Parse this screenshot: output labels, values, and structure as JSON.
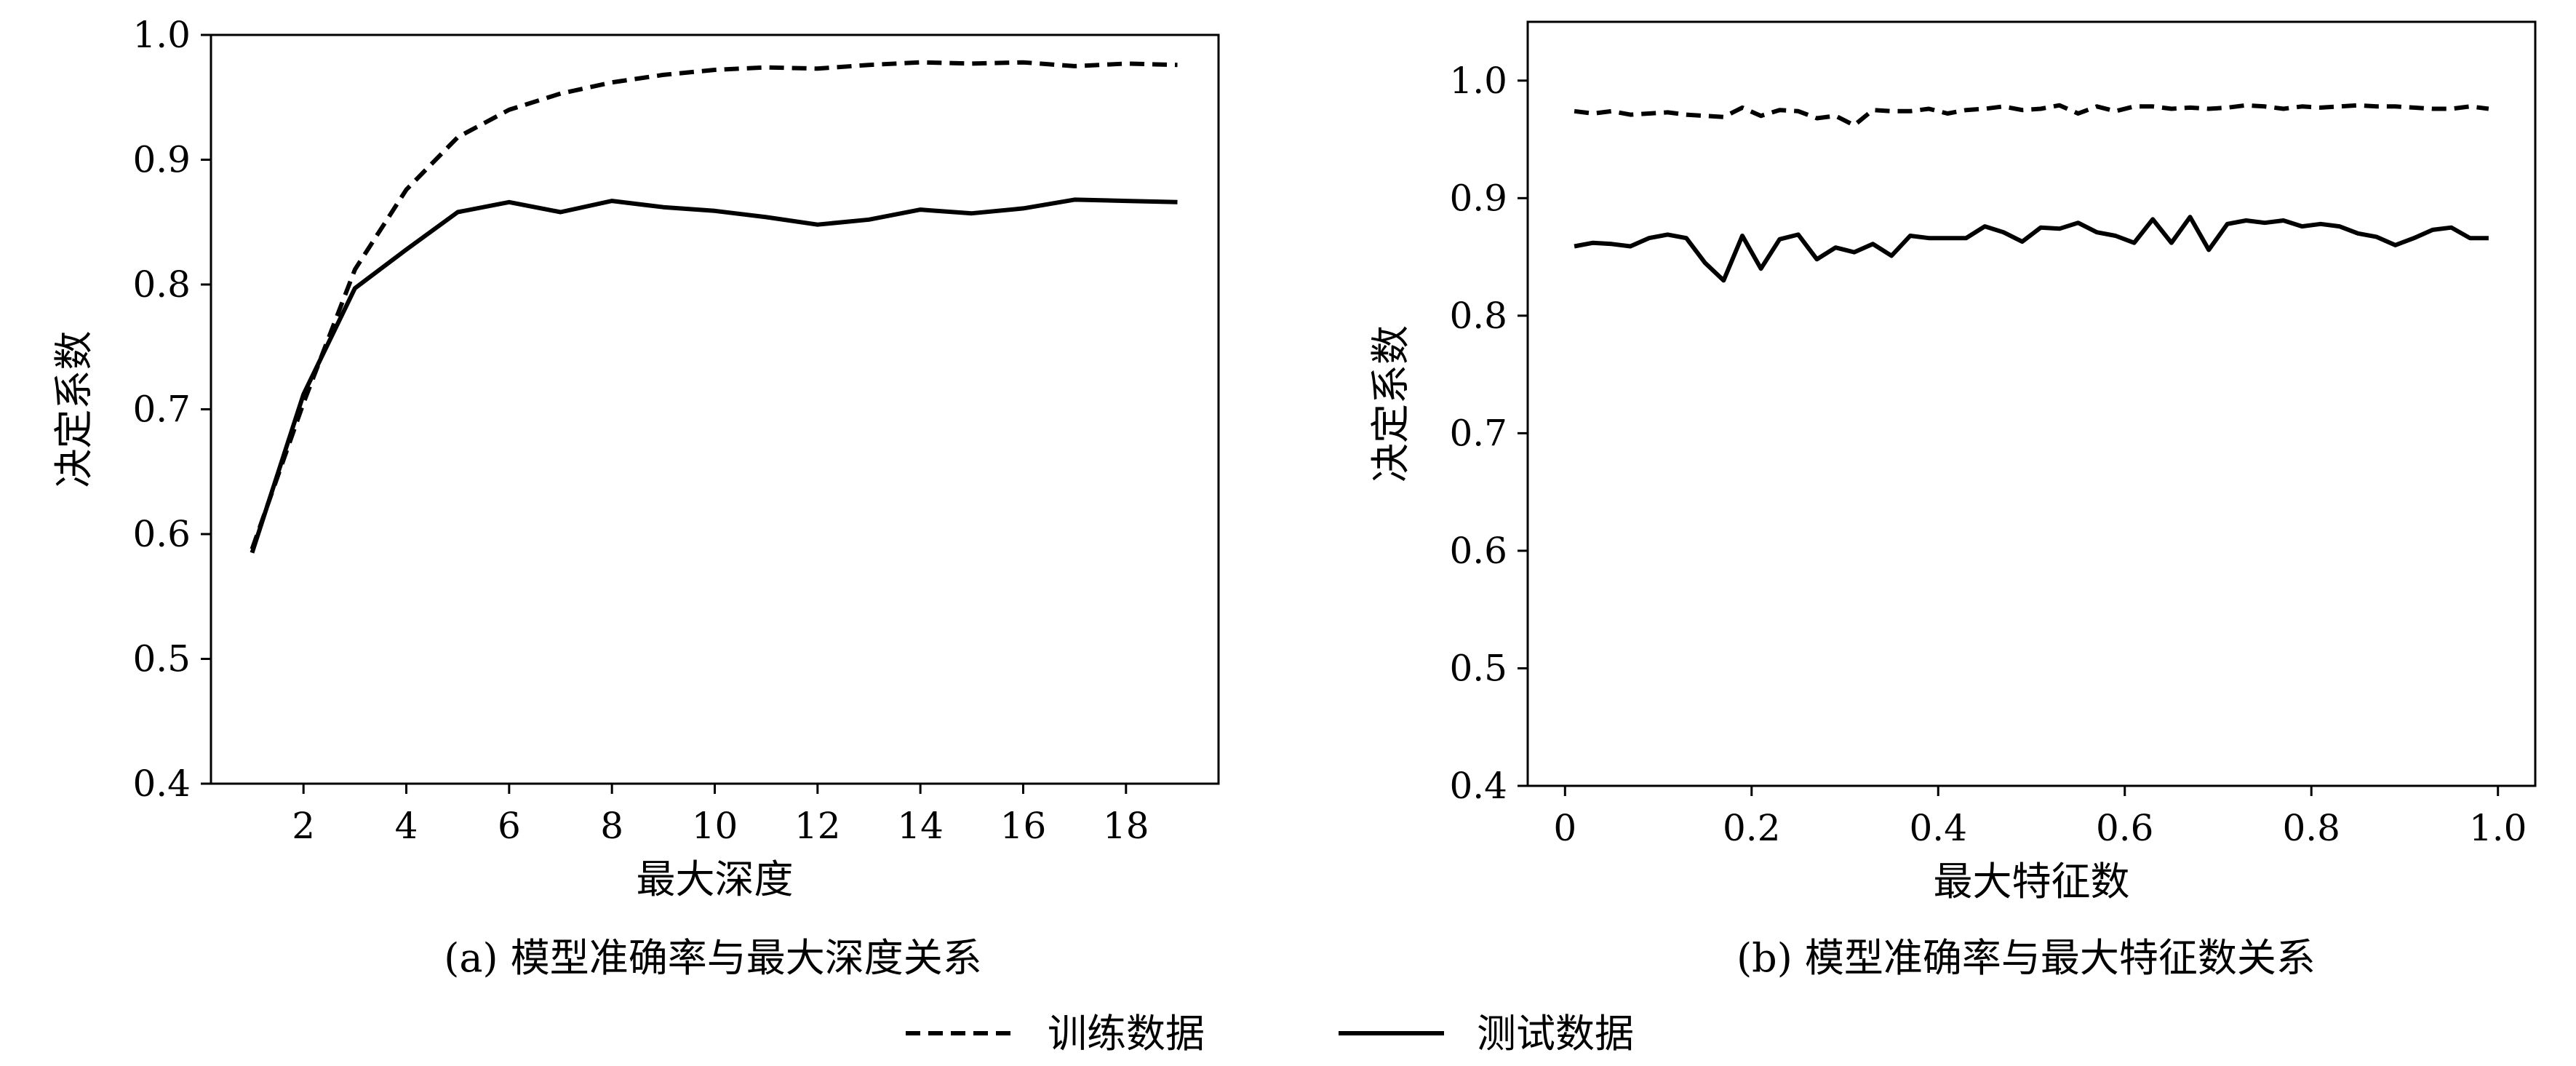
{
  "chart_data": [
    {
      "type": "line",
      "caption": "(a) 模型准确率与最大深度关系",
      "xlabel": "最大深度",
      "ylabel": "决定系数",
      "xlim": [
        0.2,
        19.8
      ],
      "ylim": [
        0.4,
        1.0
      ],
      "xticks": [
        2,
        4,
        6,
        8,
        10,
        12,
        14,
        16,
        18
      ],
      "yticks": [
        0.4,
        0.5,
        0.6,
        0.7,
        0.8,
        0.9,
        1.0
      ],
      "ytick_labels": [
        "0.4",
        "0.5",
        "0.6",
        "0.7",
        "0.8",
        "0.9",
        "1.0"
      ],
      "grid": false,
      "series": [
        {
          "name": "训练数据",
          "style": "dashed",
          "x": [
            1,
            2,
            3,
            4,
            5,
            6,
            7,
            8,
            9,
            10,
            11,
            12,
            13,
            14,
            15,
            16,
            17,
            18,
            19
          ],
          "y": [
            0.588,
            0.705,
            0.812,
            0.876,
            0.918,
            0.94,
            0.953,
            0.962,
            0.968,
            0.972,
            0.974,
            0.973,
            0.976,
            0.978,
            0.977,
            0.978,
            0.975,
            0.977,
            0.976
          ]
        },
        {
          "name": "测试数据",
          "style": "solid",
          "x": [
            1,
            2,
            3,
            4,
            5,
            6,
            7,
            8,
            9,
            10,
            11,
            12,
            13,
            14,
            15,
            16,
            17,
            18,
            19
          ],
          "y": [
            0.585,
            0.712,
            0.797,
            0.828,
            0.858,
            0.866,
            0.858,
            0.867,
            0.862,
            0.859,
            0.854,
            0.848,
            0.852,
            0.86,
            0.857,
            0.861,
            0.868,
            0.867,
            0.866
          ]
        }
      ]
    },
    {
      "type": "line",
      "caption": "(b) 模型准确率与最大特征数关系",
      "xlabel": "最大特征数",
      "ylabel": "决定系数",
      "xlim": [
        -0.04,
        1.04
      ],
      "ylim": [
        0.4,
        1.05
      ],
      "xticks": [
        0,
        0.2,
        0.4,
        0.6,
        0.8,
        1.0
      ],
      "xtick_labels": [
        "0",
        "0.2",
        "0.4",
        "0.6",
        "0.8",
        "1.0"
      ],
      "yticks": [
        0.4,
        0.5,
        0.6,
        0.7,
        0.8,
        0.9,
        1.0
      ],
      "ytick_labels": [
        "0.4",
        "0.5",
        "0.6",
        "0.7",
        "0.8",
        "0.9",
        "1.0"
      ],
      "grid": false,
      "series": [
        {
          "name": "训练数据",
          "style": "dashed",
          "x": [
            0.01,
            0.03,
            0.05,
            0.07,
            0.09,
            0.11,
            0.13,
            0.15,
            0.17,
            0.19,
            0.21,
            0.23,
            0.25,
            0.27,
            0.29,
            0.31,
            0.33,
            0.35,
            0.37,
            0.39,
            0.41,
            0.43,
            0.45,
            0.47,
            0.49,
            0.51,
            0.53,
            0.55,
            0.57,
            0.59,
            0.61,
            0.63,
            0.65,
            0.67,
            0.69,
            0.71,
            0.73,
            0.75,
            0.77,
            0.79,
            0.81,
            0.83,
            0.85,
            0.87,
            0.89,
            0.91,
            0.93,
            0.95,
            0.97,
            0.99
          ],
          "y": [
            0.974,
            0.972,
            0.974,
            0.971,
            0.972,
            0.973,
            0.971,
            0.97,
            0.969,
            0.977,
            0.97,
            0.975,
            0.974,
            0.968,
            0.97,
            0.962,
            0.975,
            0.974,
            0.974,
            0.976,
            0.972,
            0.975,
            0.976,
            0.978,
            0.975,
            0.976,
            0.979,
            0.972,
            0.978,
            0.974,
            0.978,
            0.978,
            0.976,
            0.977,
            0.976,
            0.977,
            0.979,
            0.978,
            0.976,
            0.978,
            0.977,
            0.978,
            0.979,
            0.978,
            0.978,
            0.977,
            0.976,
            0.976,
            0.978,
            0.976
          ]
        },
        {
          "name": "测试数据",
          "style": "solid",
          "x": [
            0.01,
            0.03,
            0.05,
            0.07,
            0.09,
            0.11,
            0.13,
            0.15,
            0.17,
            0.19,
            0.21,
            0.23,
            0.25,
            0.27,
            0.29,
            0.31,
            0.33,
            0.35,
            0.37,
            0.39,
            0.41,
            0.43,
            0.45,
            0.47,
            0.49,
            0.51,
            0.53,
            0.55,
            0.57,
            0.59,
            0.61,
            0.63,
            0.65,
            0.67,
            0.69,
            0.71,
            0.73,
            0.75,
            0.77,
            0.79,
            0.81,
            0.83,
            0.85,
            0.87,
            0.89,
            0.91,
            0.93,
            0.95,
            0.97,
            0.99
          ],
          "y": [
            0.859,
            0.862,
            0.861,
            0.859,
            0.866,
            0.869,
            0.866,
            0.845,
            0.83,
            0.868,
            0.84,
            0.865,
            0.869,
            0.848,
            0.858,
            0.854,
            0.861,
            0.851,
            0.868,
            0.866,
            0.866,
            0.866,
            0.876,
            0.871,
            0.863,
            0.875,
            0.874,
            0.879,
            0.871,
            0.868,
            0.862,
            0.882,
            0.862,
            0.884,
            0.856,
            0.878,
            0.881,
            0.879,
            0.881,
            0.876,
            0.878,
            0.876,
            0.87,
            0.867,
            0.86,
            0.866,
            0.873,
            0.875,
            0.866,
            0.866
          ]
        }
      ]
    }
  ],
  "legend": {
    "placement": "bottom-center",
    "items": [
      {
        "label": "训练数据",
        "style": "dashed"
      },
      {
        "label": "测试数据",
        "style": "solid"
      }
    ]
  }
}
